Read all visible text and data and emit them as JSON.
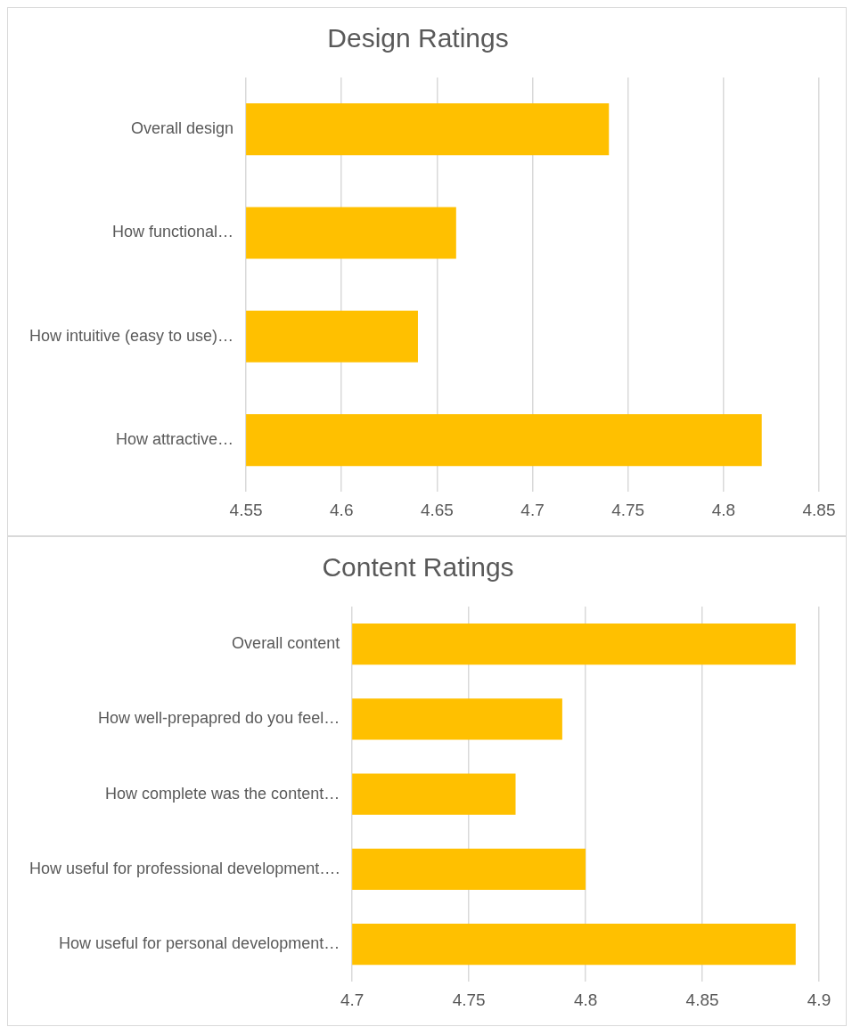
{
  "chart_data": [
    {
      "type": "bar",
      "orientation": "horizontal",
      "title": "Design Ratings",
      "categories": [
        "Overall design",
        "How functional…",
        "How intuitive (easy to use)…",
        "How attractive…"
      ],
      "values": [
        4.74,
        4.66,
        4.64,
        4.82
      ],
      "color": "#ffc000",
      "xlim": [
        4.55,
        4.85
      ],
      "xticks": [
        4.55,
        4.6,
        4.65,
        4.7,
        4.75,
        4.8,
        4.85
      ],
      "grid": "x"
    },
    {
      "type": "bar",
      "orientation": "horizontal",
      "title": "Content Ratings",
      "categories": [
        "Overall content",
        "How well-prepapred do you feel…",
        "How complete was the content…",
        "How useful for professional development….",
        "How useful for personal development…"
      ],
      "values": [
        4.89,
        4.79,
        4.77,
        4.8,
        4.89
      ],
      "color": "#ffc000",
      "xlim": [
        4.7,
        4.9
      ],
      "xticks": [
        4.7,
        4.75,
        4.8,
        4.85,
        4.9
      ],
      "grid": "x"
    }
  ]
}
